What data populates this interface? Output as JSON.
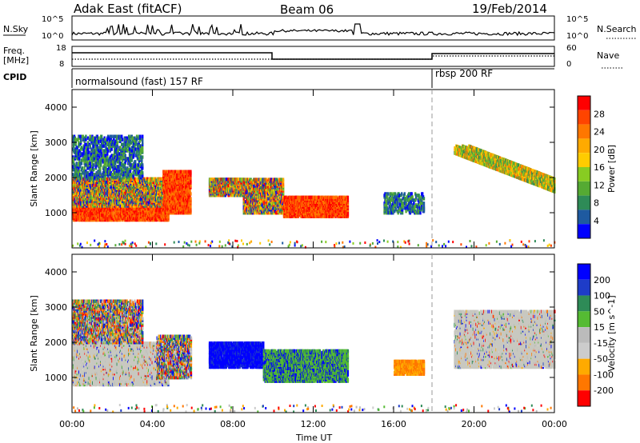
{
  "header": {
    "station": "Adak East (fitACF)",
    "beam": "Beam 06",
    "date": "19/Feb/2014"
  },
  "top_panels": {
    "nsky_label": "N.Sky",
    "nsearch_label": "N.Search",
    "nsky_ticks": [
      "10^5",
      "10^0"
    ],
    "nsearch_ticks": [
      "10^5",
      "10^0"
    ],
    "freq_label": "Freq.",
    "freq_unit": "[MHz]",
    "freq_ticks": [
      "18",
      "8"
    ],
    "nave_label": "Nave",
    "nave_ticks": [
      "60",
      "0"
    ],
    "cpid_label": "CPID",
    "cpid_segments": [
      {
        "label": "normalsound (fast) 157 RF",
        "start_hr": 0
      },
      {
        "label": "rbsp 200 RF",
        "start_hr": 18
      }
    ]
  },
  "colors": {
    "power": [
      "#0000ff",
      "#1e5aa0",
      "#2e8b57",
      "#55aa33",
      "#88cc22",
      "#ffcc00",
      "#ffaa00",
      "#ff7700",
      "#ff4400",
      "#ff0000"
    ],
    "velocity": [
      "#ff0000",
      "#ff7700",
      "#ffaa00",
      "#cccccc",
      "#bbbbbb",
      "#55bb33",
      "#2e8b57",
      "#1e3cc8",
      "#0000ff"
    ]
  },
  "chart_data": [
    {
      "type": "heatmap",
      "title": "Power",
      "ylabel": "Slant Range [km]",
      "xlabel": "Time UT",
      "x_ticks": [
        "00:00",
        "04:00",
        "08:00",
        "12:00",
        "16:00",
        "20:00",
        "00:00"
      ],
      "xlim_hours": [
        0,
        24
      ],
      "y_ticks": [
        1000,
        2000,
        3000,
        4000
      ],
      "ylim": [
        0,
        4500
      ],
      "colorbar_label": "Power [dB]",
      "colorbar_ticks": [
        4,
        8,
        12,
        16,
        20,
        24,
        28
      ],
      "cpid_change_hr": 18,
      "regions": [
        {
          "t0": 0.0,
          "t1": 4.8,
          "r0": 800,
          "r1": 1200,
          "level": "high"
        },
        {
          "t0": 0.0,
          "t1": 5.0,
          "r0": 1200,
          "r1": 2000,
          "level": "mixed"
        },
        {
          "t0": 0.0,
          "t1": 3.5,
          "r0": 2000,
          "r1": 3200,
          "level": "low"
        },
        {
          "t0": 4.5,
          "t1": 5.9,
          "r0": 1000,
          "r1": 2200,
          "level": "high"
        },
        {
          "t0": 6.8,
          "t1": 8.5,
          "r0": 1500,
          "r1": 2000,
          "level": "mixed"
        },
        {
          "t0": 8.5,
          "t1": 10.5,
          "r0": 1000,
          "r1": 2000,
          "level": "mixed"
        },
        {
          "t0": 10.5,
          "t1": 13.7,
          "r0": 900,
          "r1": 1500,
          "level": "high"
        },
        {
          "t0": 15.5,
          "t1": 17.5,
          "r0": 1000,
          "r1": 1600,
          "level": "low"
        },
        {
          "t0": 19.0,
          "t1": 24.0,
          "r0": 1300,
          "r1": 2900,
          "level": "bands"
        }
      ]
    },
    {
      "type": "heatmap",
      "title": "Velocity",
      "ylabel": "Slant Range [km]",
      "xlabel": "Time UT",
      "x_ticks": [
        "00:00",
        "04:00",
        "08:00",
        "12:00",
        "16:00",
        "20:00",
        "00:00"
      ],
      "xlim_hours": [
        0,
        24
      ],
      "y_ticks": [
        1000,
        2000,
        3000,
        4000
      ],
      "ylim": [
        0,
        4500
      ],
      "colorbar_label": "Velocity [m s^-1]",
      "colorbar_ticks": [
        -200,
        -100,
        -50,
        -15,
        15,
        50,
        100,
        200
      ],
      "cpid_change_hr": 18,
      "regions": [
        {
          "t0": 0.0,
          "t1": 4.8,
          "r0": 800,
          "r1": 2000,
          "level": "ground"
        },
        {
          "t0": 0.0,
          "t1": 3.5,
          "r0": 2000,
          "r1": 3200,
          "level": "mixed"
        },
        {
          "t0": 4.2,
          "t1": 5.9,
          "r0": 1000,
          "r1": 2200,
          "level": "mixed"
        },
        {
          "t0": 6.8,
          "t1": 9.5,
          "r0": 1300,
          "r1": 2000,
          "level": "toward"
        },
        {
          "t0": 9.5,
          "t1": 13.7,
          "r0": 900,
          "r1": 1800,
          "level": "green"
        },
        {
          "t0": 16.0,
          "t1": 17.5,
          "r0": 1100,
          "r1": 1500,
          "level": "away"
        },
        {
          "t0": 19.0,
          "t1": 24.0,
          "r0": 1300,
          "r1": 2900,
          "level": "ground"
        }
      ]
    }
  ]
}
